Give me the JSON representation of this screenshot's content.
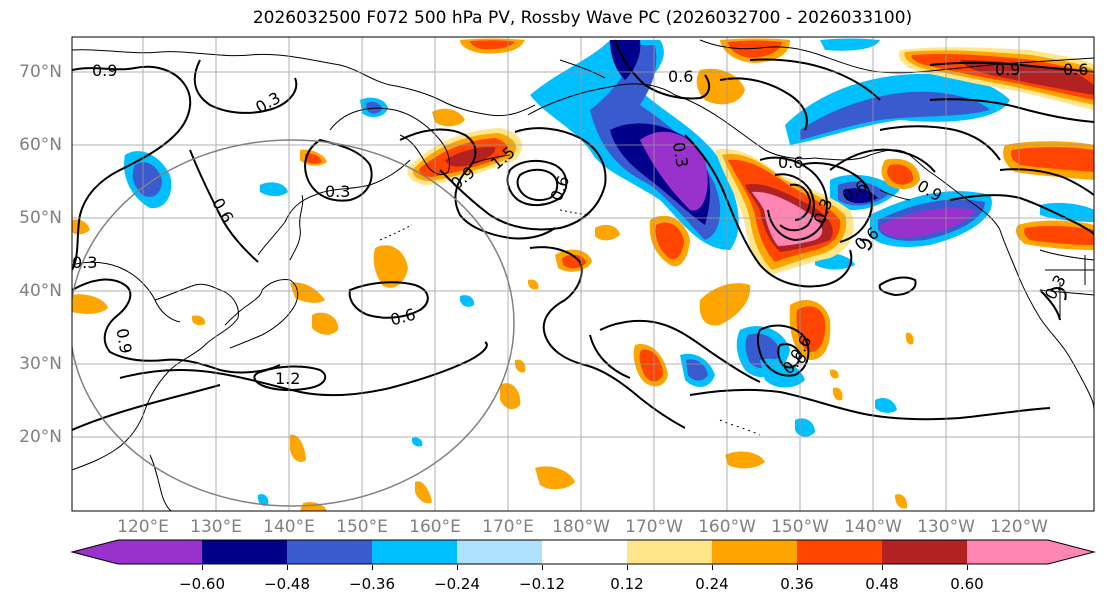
{
  "title": "2026032500 F072 500 hPa PV, Rossby Wave PC (2026032700 - 2026033100)",
  "latitude_labels": [
    "70°N",
    "60°N",
    "50°N",
    "40°N",
    "30°N",
    "20°N"
  ],
  "longitude_labels": [
    "120°E",
    "130°E",
    "140°E",
    "150°E",
    "160°E",
    "170°E",
    "180°W",
    "170°W",
    "160°W",
    "150°W",
    "140°W",
    "130°W",
    "120°W"
  ],
  "colorbar": {
    "tick_labels": [
      "−0.60",
      "−0.48",
      "−0.36",
      "−0.24",
      "−0.12",
      "0.12",
      "0.24",
      "0.36",
      "0.48",
      "0.60"
    ],
    "colors": [
      "#9932cc",
      "#00008b",
      "#3a5bd0",
      "#00bfff",
      "#b0e0ff",
      "#ffffff",
      "#ffe68a",
      "#ffa500",
      "#ff4500",
      "#b22222",
      "#ff85b3"
    ]
  },
  "contour_labels": [
    "0.9",
    "0.3",
    "0.6",
    "0.3",
    "0.3",
    "0.9",
    "0.6",
    "1.2",
    "0.9",
    "1.5",
    "0.6",
    "0.6",
    "0.3",
    "0.6",
    "0.3",
    "0.6",
    "0.9",
    "0.6",
    "0.9",
    "0.6",
    "0.3",
    "0.6",
    "0.6"
  ]
}
